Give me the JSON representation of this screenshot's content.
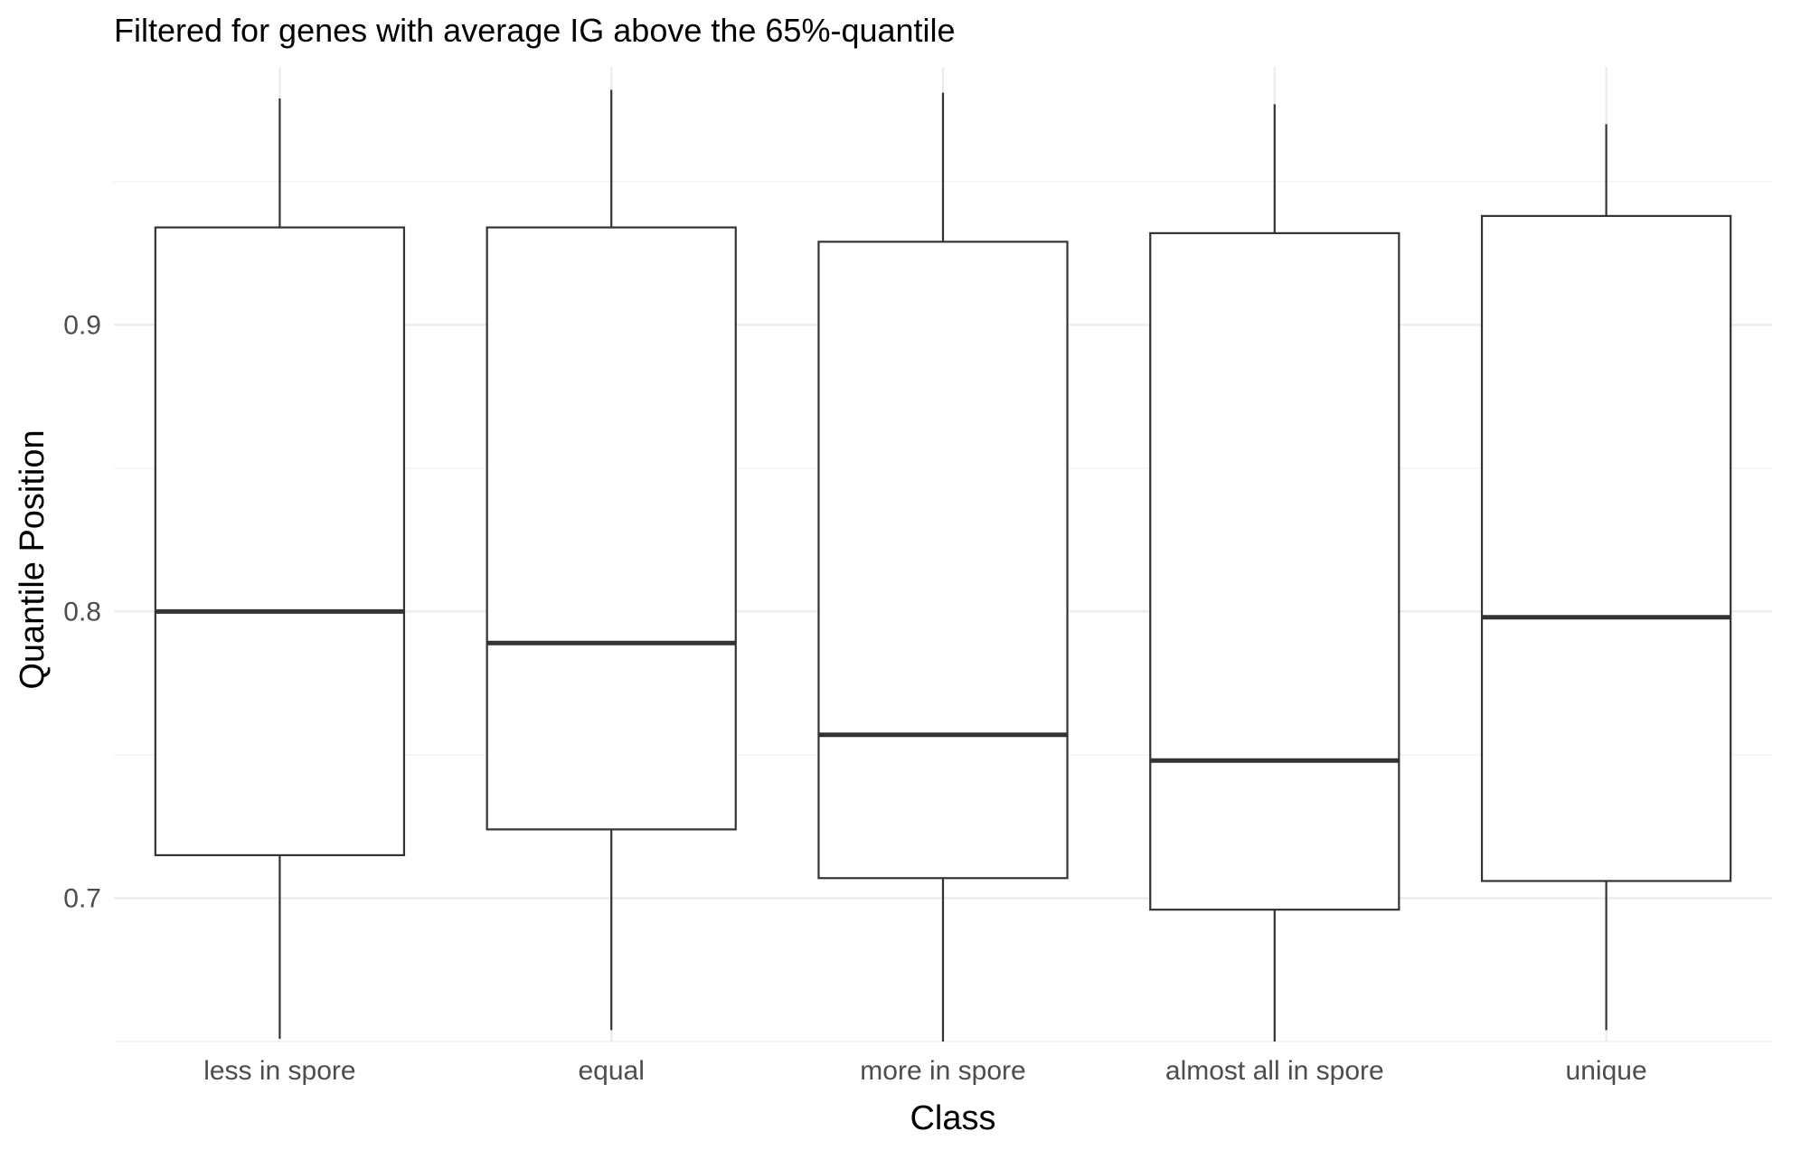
{
  "chart_data": {
    "type": "boxplot",
    "title": "Filtered for genes with average IG above the 65%-quantile",
    "xlabel": "Class",
    "ylabel": "Quantile Position",
    "categories": [
      "less in spore",
      "equal",
      "more in spore",
      "almost all in spore",
      "unique"
    ],
    "boxes": [
      {
        "category": "less in spore",
        "lower_whisker": 0.651,
        "q1": 0.715,
        "median": 0.8,
        "q3": 0.934,
        "upper_whisker": 0.979
      },
      {
        "category": "equal",
        "lower_whisker": 0.654,
        "q1": 0.724,
        "median": 0.789,
        "q3": 0.934,
        "upper_whisker": 0.982
      },
      {
        "category": "more in spore",
        "lower_whisker": 0.65,
        "q1": 0.707,
        "median": 0.757,
        "q3": 0.929,
        "upper_whisker": 0.981
      },
      {
        "category": "almost all in spore",
        "lower_whisker": 0.65,
        "q1": 0.696,
        "median": 0.748,
        "q3": 0.932,
        "upper_whisker": 0.977
      },
      {
        "category": "unique",
        "lower_whisker": 0.654,
        "q1": 0.706,
        "median": 0.798,
        "q3": 0.938,
        "upper_whisker": 0.97
      }
    ],
    "yticks": [
      0.7,
      0.8,
      0.9
    ],
    "ytick_labels": [
      "0.7",
      "0.8",
      "0.9"
    ],
    "ylim": [
      0.65,
      0.99
    ],
    "grid": true,
    "legend": "none",
    "colors": {
      "box_stroke": "#333333",
      "median": "#333333",
      "whisker": "#333333",
      "grid_major": "#ebebeb",
      "grid_minor": "#f3f3f3",
      "tick_text": "#4d4d4d",
      "title_text": "#000000"
    }
  }
}
